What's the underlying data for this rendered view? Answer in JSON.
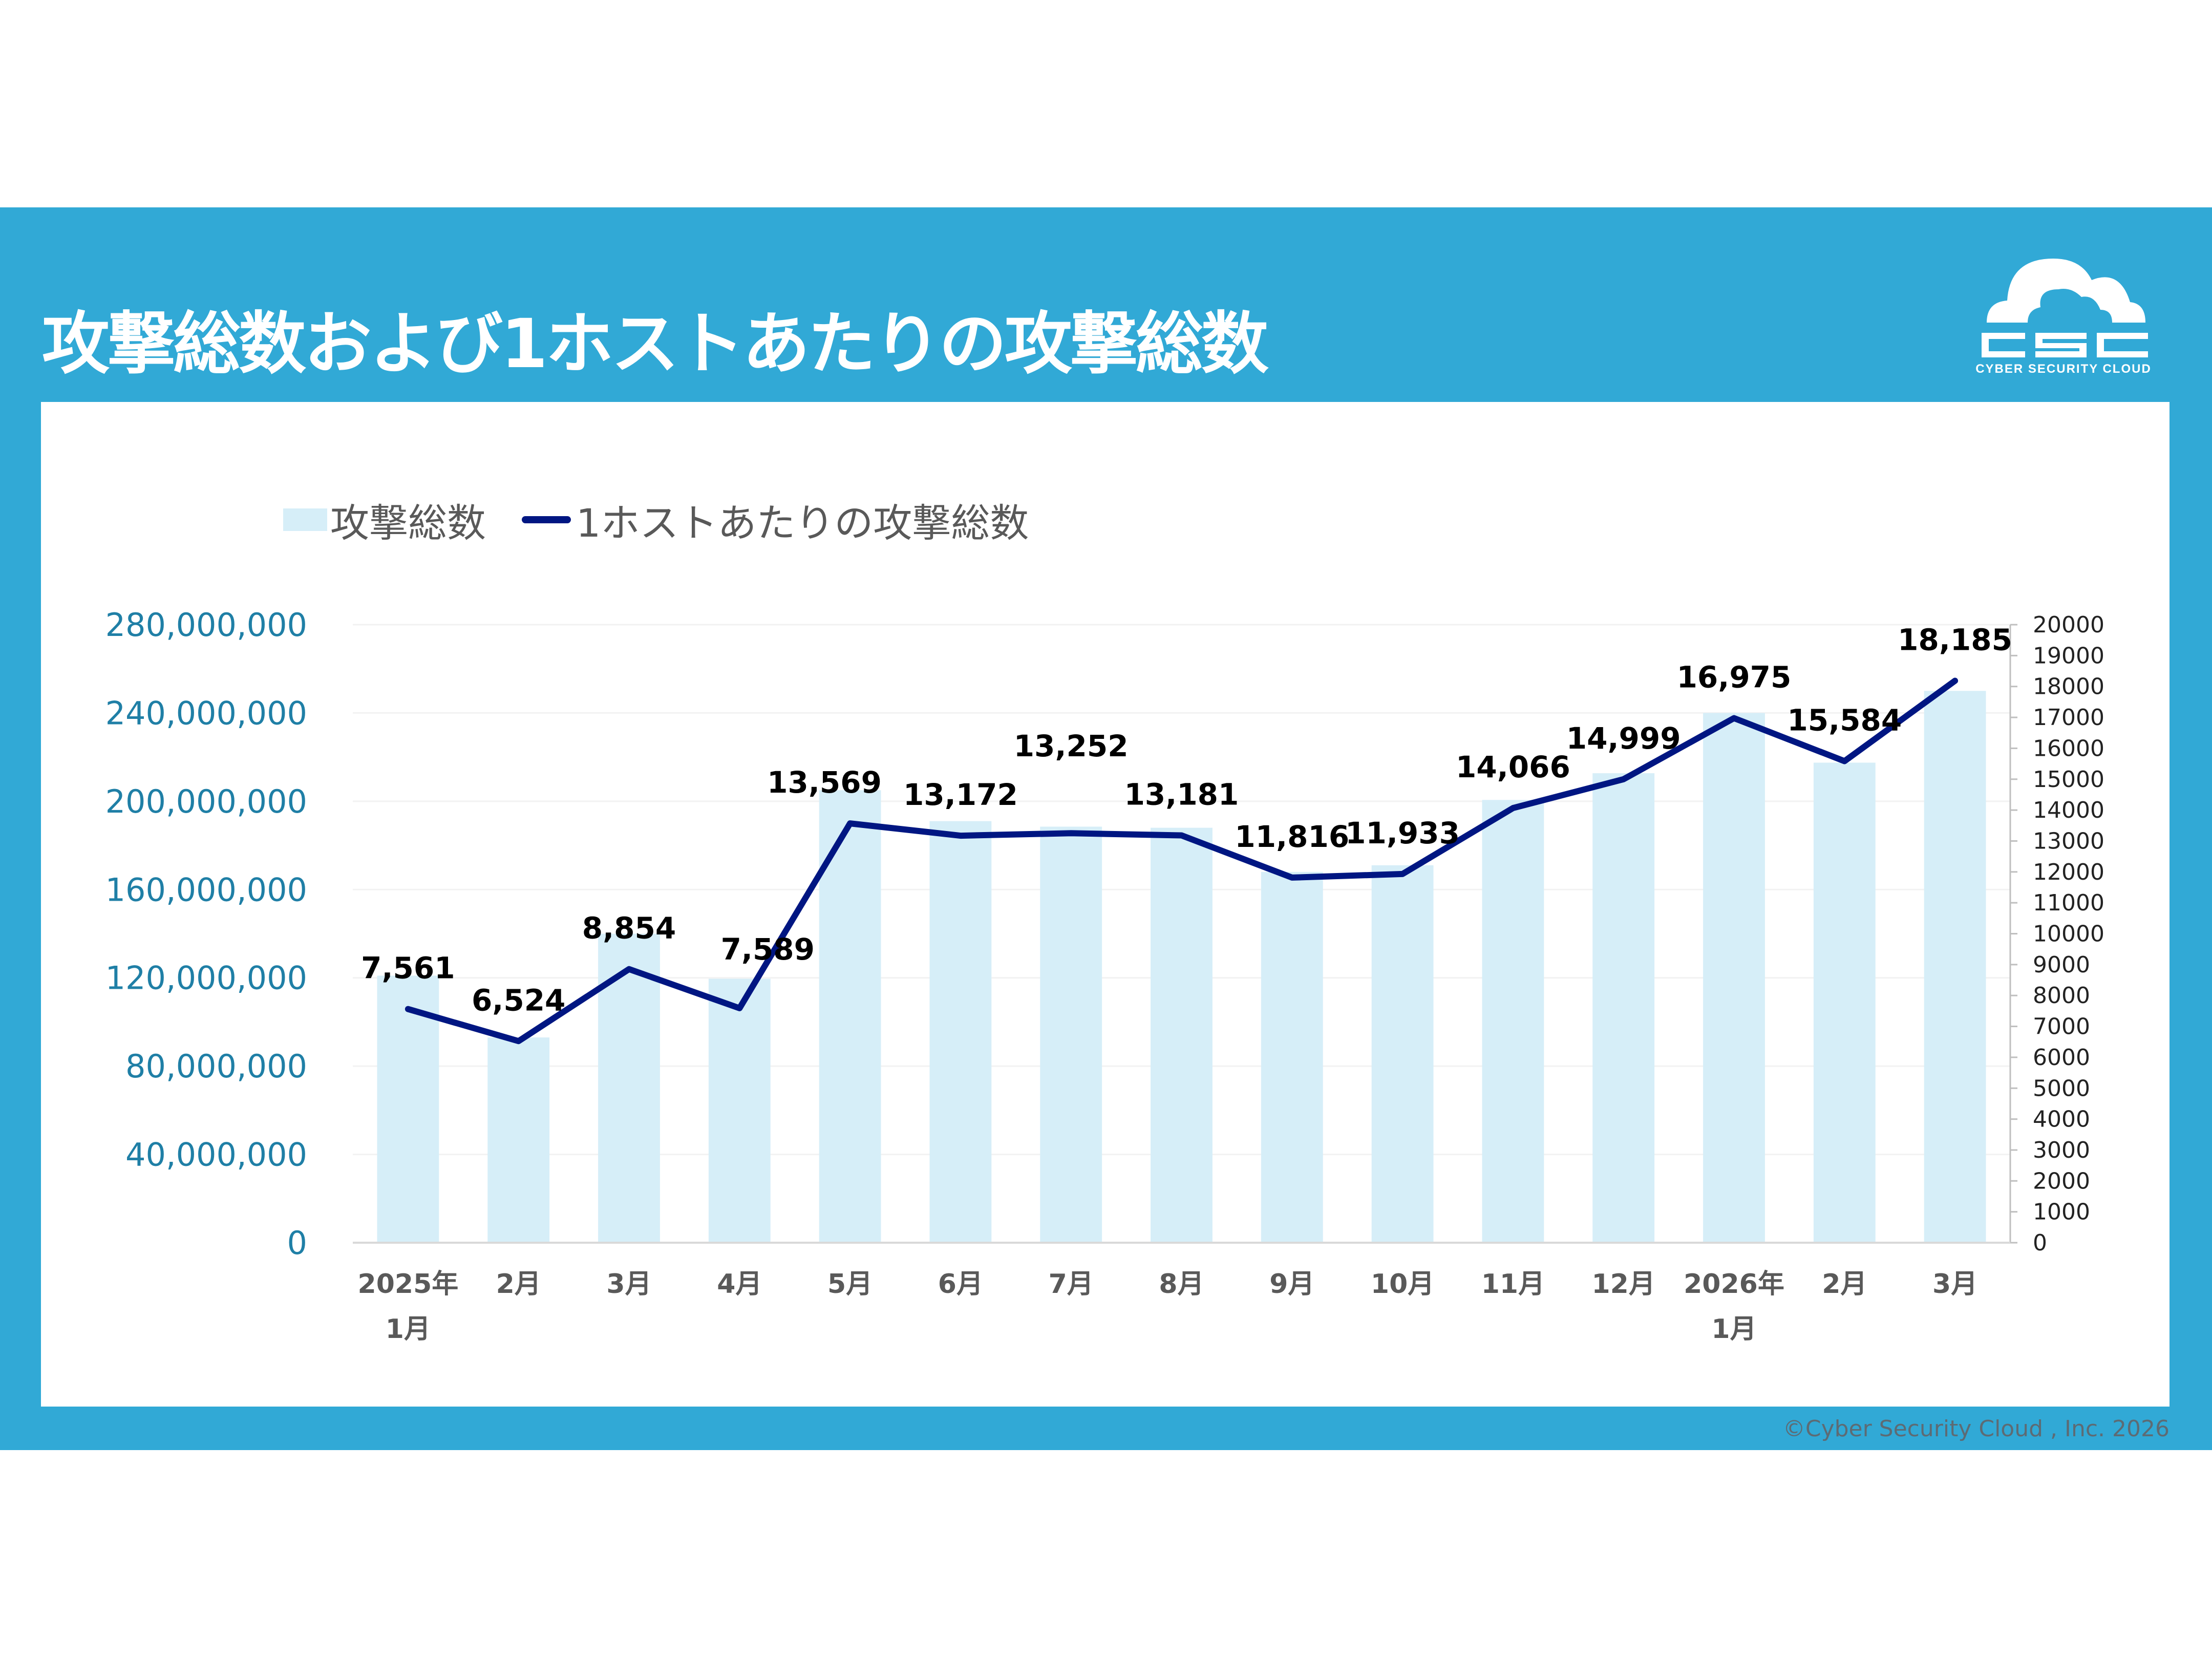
{
  "header": {
    "title": "攻撃総数および1ホストあたりの攻撃総数"
  },
  "logo": {
    "mark": "CSC",
    "tagline": "CYBER SECURITY CLOUD"
  },
  "footer": {
    "copyright": "©Cyber Security Cloud , Inc. 2026"
  },
  "colors": {
    "band": "#31a9d6",
    "bar": "#d6eef8",
    "line": "#001682",
    "left_axis_text": "#1f7fa6"
  },
  "chart_data": {
    "type": "bar+line",
    "categories": [
      "2025年\n1月",
      "2月",
      "3月",
      "4月",
      "5月",
      "6月",
      "7月",
      "8月",
      "9月",
      "10月",
      "11月",
      "12月",
      "2026年\n1月",
      "2月",
      "3月"
    ],
    "category_lines": [
      [
        "2025年",
        "1月"
      ],
      [
        "2月"
      ],
      [
        "3月"
      ],
      [
        "4月"
      ],
      [
        "5月"
      ],
      [
        "6月"
      ],
      [
        "7月"
      ],
      [
        "8月"
      ],
      [
        "9月"
      ],
      [
        "10月"
      ],
      [
        "11月"
      ],
      [
        "12月"
      ],
      [
        "2026年",
        "1月"
      ],
      [
        "2月"
      ],
      [
        "3月"
      ]
    ],
    "series": [
      {
        "name": "攻撃総数",
        "type": "bar",
        "axis": "left",
        "values": [
          121000000,
          93000000,
          140000000,
          119600000,
          205000000,
          191000000,
          188500000,
          188000000,
          168000000,
          171000000,
          200600000,
          212700000,
          240000000,
          217500000,
          250000000
        ]
      },
      {
        "name": "1ホストあたりの攻撃総数",
        "type": "line",
        "axis": "right",
        "values": [
          7561,
          6524,
          8854,
          7589,
          13569,
          13172,
          13252,
          13181,
          11816,
          11933,
          14066,
          14999,
          16975,
          15584,
          18185
        ],
        "labels": [
          "7,561",
          "6,524",
          "8,854",
          "7,589",
          "13,569",
          "13,172",
          "13,252",
          "13,181",
          "11,816",
          "11,933",
          "14,066",
          "14,999",
          "16,975",
          "15,584",
          "18,185"
        ]
      }
    ],
    "left_axis": {
      "range": [
        0,
        280000000
      ],
      "ticks": [
        "0",
        "40,000,000",
        "80,000,000",
        "120,000,000",
        "160,000,000",
        "200,000,000",
        "240,000,000",
        "280,000,000"
      ]
    },
    "right_axis": {
      "range": [
        0,
        20000
      ],
      "ticks": [
        "0",
        "1000",
        "2000",
        "3000",
        "4000",
        "5000",
        "6000",
        "7000",
        "8000",
        "9000",
        "10000",
        "11000",
        "12000",
        "13000",
        "14000",
        "15000",
        "16000",
        "17000",
        "18000",
        "19000",
        "20000"
      ]
    },
    "grid": true,
    "legend": "top-left"
  }
}
